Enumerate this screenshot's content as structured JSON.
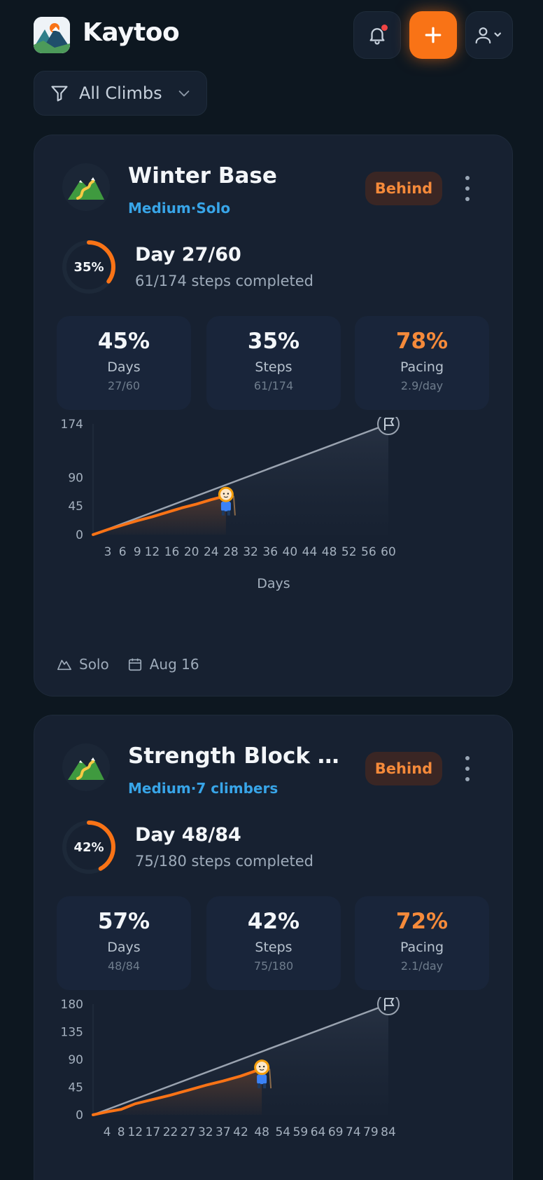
{
  "app": {
    "name": "Kaytoo"
  },
  "header": {
    "notifications_icon": "bell-icon",
    "add_icon": "plus-icon",
    "user_icon": "user-icon"
  },
  "filter": {
    "label": "All Climbs",
    "icon": "filter-icon"
  },
  "colors": {
    "accent": "#f97316",
    "subtitle_blue": "#38a5e8",
    "behind": "#f58a3a",
    "background": "#0d1720",
    "card": "#172131"
  },
  "climbs": [
    {
      "title": "Winter Base",
      "difficulty": "Medium",
      "separator": "·",
      "group": "Solo",
      "status": "Behind",
      "progress_percent": 35,
      "progress_label": "35%",
      "day_text": "Day 27/60",
      "steps_text": "61/174 steps completed",
      "stats": [
        {
          "value": "45%",
          "label": "Days",
          "sub": "27/60"
        },
        {
          "value": "35%",
          "label": "Steps",
          "sub": "61/174"
        },
        {
          "value": "78%",
          "label": "Pacing",
          "sub": "2.9/day"
        }
      ],
      "footer": {
        "mode": "Solo",
        "date": "Aug 16"
      },
      "chart_data": {
        "type": "line",
        "xlabel": "Days",
        "ylabel": "",
        "xlim": [
          0,
          60
        ],
        "ylim": [
          0,
          174
        ],
        "y_ticks": [
          "174",
          "90",
          "45",
          "0"
        ],
        "y_tick_values": [
          174,
          90,
          45,
          0
        ],
        "x_ticks": [
          "3",
          "6",
          "9",
          "12",
          "16",
          "20",
          "24",
          "28",
          "32",
          "36",
          "40",
          "44",
          "48",
          "52",
          "56",
          "60"
        ],
        "x_tick_values": [
          3,
          6,
          9,
          12,
          16,
          20,
          24,
          28,
          32,
          36,
          40,
          44,
          48,
          52,
          56,
          60
        ],
        "series": [
          {
            "x": [
              0,
              60
            ],
            "y": [
              0,
              174
            ]
          },
          {
            "x": [
              0,
              3,
              6,
              9,
              12,
              15,
              18,
              21,
              24,
              27
            ],
            "y": [
              0,
              8,
              15,
              22,
              28,
              35,
              42,
              48,
              55,
              61
            ]
          }
        ],
        "current": {
          "x": 27,
          "y": 61
        },
        "goal": {
          "x": 60,
          "y": 174
        }
      }
    },
    {
      "title": "Strength Block — In…",
      "difficulty": "Medium",
      "separator": "·",
      "group": "7 climbers",
      "status": "Behind",
      "progress_percent": 42,
      "progress_label": "42%",
      "day_text": "Day 48/84",
      "steps_text": "75/180 steps completed",
      "stats": [
        {
          "value": "57%",
          "label": "Days",
          "sub": "48/84"
        },
        {
          "value": "42%",
          "label": "Steps",
          "sub": "75/180"
        },
        {
          "value": "72%",
          "label": "Pacing",
          "sub": "2.1/day"
        }
      ],
      "chart_data": {
        "type": "line",
        "xlabel": "",
        "ylabel": "",
        "xlim": [
          0,
          84
        ],
        "ylim": [
          0,
          180
        ],
        "y_ticks": [
          "180",
          "135",
          "90",
          "45",
          "0"
        ],
        "y_tick_values": [
          180,
          135,
          90,
          45,
          0
        ],
        "x_ticks": [
          "4",
          "8",
          "12",
          "17",
          "22",
          "27",
          "32",
          "37",
          "42",
          "48",
          "54",
          "59",
          "64",
          "69",
          "74",
          "79",
          "84"
        ],
        "x_tick_values": [
          4,
          8,
          12,
          17,
          22,
          27,
          32,
          37,
          42,
          48,
          54,
          59,
          64,
          69,
          74,
          79,
          84
        ],
        "series": [
          {
            "x": [
              0,
              84
            ],
            "y": [
              0,
              180
            ]
          },
          {
            "x": [
              0,
              4,
              8,
              12,
              17,
              22,
              27,
              32,
              37,
              42,
              46,
              48
            ],
            "y": [
              0,
              5,
              9,
              18,
              25,
              32,
              40,
              48,
              55,
              63,
              71,
              75
            ]
          }
        ],
        "current": {
          "x": 48,
          "y": 75
        },
        "goal": {
          "x": 84,
          "y": 180
        }
      }
    }
  ]
}
